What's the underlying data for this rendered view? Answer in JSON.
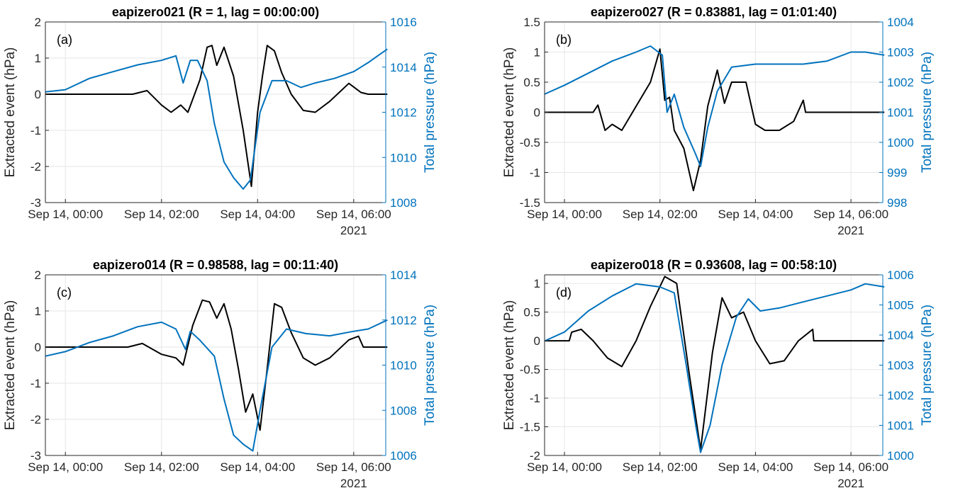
{
  "figure": {
    "colors": {
      "left_axis": "#262626",
      "right_axis": "#0072BD",
      "extracted_line": "#000000",
      "pressure_line": "#0072BD",
      "grid": "#e6e6e6"
    },
    "x_tick_labels": [
      "Sep 14, 00:00",
      "Sep 14, 02:00",
      "Sep 14, 04:00",
      "Sep 14, 06:00"
    ],
    "x_year_label": "2021",
    "ylabel_left": "Extracted event (hPa)",
    "ylabel_right": "Total pressure (hPa)"
  },
  "chart_data": [
    {
      "type": "line",
      "title": "eapizero021 (R = 1, lag = 00:00:00)",
      "panel_label": "(a)",
      "xlim": [
        "2021-09-14 -00:25",
        "2021-09-14 06:40"
      ],
      "ylim_left": [
        -3,
        2
      ],
      "left_ticks": [
        "-3",
        "-2",
        "-1",
        "0",
        "1",
        "2"
      ],
      "ylim_right": [
        1008,
        1016
      ],
      "right_ticks": [
        "1008",
        "1010",
        "1012",
        "1014",
        "1016"
      ],
      "series": [
        {
          "axis": "left",
          "color": "#000000",
          "x": [
            -0.42,
            1.4,
            1.7,
            2.0,
            2.2,
            2.4,
            2.55,
            2.8,
            2.95,
            3.05,
            3.15,
            3.3,
            3.5,
            3.7,
            3.87,
            4.0,
            4.1,
            4.2,
            4.35,
            4.5,
            4.7,
            4.95,
            5.2,
            5.5,
            5.9,
            6.15,
            6.3,
            6.7
          ],
          "y": [
            0.0,
            0.0,
            0.1,
            -0.3,
            -0.5,
            -0.3,
            -0.5,
            0.4,
            1.3,
            1.35,
            0.8,
            1.3,
            0.5,
            -1.0,
            -2.55,
            -0.5,
            0.5,
            1.35,
            1.2,
            0.6,
            0.0,
            -0.45,
            -0.5,
            -0.2,
            0.3,
            0.05,
            0.0,
            0.0
          ]
        },
        {
          "axis": "right",
          "color": "#0072BD",
          "x": [
            -0.42,
            0.0,
            0.5,
            1.0,
            1.5,
            2.0,
            2.3,
            2.45,
            2.6,
            2.75,
            2.95,
            3.1,
            3.3,
            3.5,
            3.7,
            3.85,
            4.05,
            4.3,
            4.6,
            4.9,
            5.2,
            5.6,
            6.0,
            6.3,
            6.5,
            6.7
          ],
          "y": [
            1012.9,
            1013.0,
            1013.5,
            1013.8,
            1014.1,
            1014.3,
            1014.5,
            1013.3,
            1014.3,
            1014.3,
            1013.4,
            1011.5,
            1009.8,
            1009.1,
            1008.6,
            1009.0,
            1012.0,
            1013.4,
            1013.4,
            1013.1,
            1013.3,
            1013.5,
            1013.8,
            1014.2,
            1014.5,
            1014.8
          ]
        }
      ]
    },
    {
      "type": "line",
      "title": "eapizero027 (R = 0.83881, lag = 01:01:40)",
      "panel_label": "(b)",
      "xlim": [
        "2021-09-14 -00:25",
        "2021-09-14 06:40"
      ],
      "ylim_left": [
        -1.5,
        1.5
      ],
      "left_ticks": [
        "-1.5",
        "-1",
        "-0.5",
        "0",
        "0.5",
        "1",
        "1.5"
      ],
      "ylim_right": [
        998,
        1004
      ],
      "right_ticks": [
        "998",
        "999",
        "1000",
        "1001",
        "1002",
        "1003",
        "1004"
      ],
      "series": [
        {
          "axis": "left",
          "color": "#000000",
          "x": [
            -0.42,
            0.6,
            0.7,
            0.85,
            1.0,
            1.2,
            1.5,
            1.8,
            2.0,
            2.1,
            2.2,
            2.3,
            2.5,
            2.7,
            2.85,
            3.0,
            3.2,
            3.35,
            3.5,
            3.8,
            4.0,
            4.2,
            4.5,
            4.8,
            5.0,
            5.05,
            5.2,
            6.7
          ],
          "y": [
            0.0,
            0.0,
            0.12,
            -0.3,
            -0.2,
            -0.3,
            0.1,
            0.5,
            1.05,
            0.2,
            0.25,
            -0.3,
            -0.6,
            -1.3,
            -0.8,
            0.1,
            0.7,
            0.15,
            0.5,
            0.5,
            -0.2,
            -0.3,
            -0.3,
            -0.15,
            0.2,
            0.0,
            0.0,
            0.0
          ]
        },
        {
          "axis": "right",
          "color": "#0072BD",
          "x": [
            -0.42,
            0.0,
            0.5,
            1.0,
            1.5,
            1.8,
            2.05,
            2.15,
            2.3,
            2.5,
            2.75,
            2.85,
            3.0,
            3.2,
            3.5,
            4.0,
            4.5,
            5.0,
            5.5,
            6.0,
            6.3,
            6.7
          ],
          "y": [
            1001.6,
            1001.9,
            1002.3,
            1002.7,
            1003.0,
            1003.2,
            1002.9,
            1001.0,
            1001.6,
            1000.5,
            999.6,
            999.2,
            1000.5,
            1001.7,
            1002.5,
            1002.6,
            1002.6,
            1002.6,
            1002.7,
            1003.0,
            1003.0,
            1002.9
          ]
        }
      ]
    },
    {
      "type": "line",
      "title": "eapizero014 (R = 0.98588, lag = 00:11:40)",
      "panel_label": "(c)",
      "xlim": [
        "2021-09-14 -00:25",
        "2021-09-14 06:40"
      ],
      "ylim_left": [
        -3,
        2
      ],
      "left_ticks": [
        "-3",
        "-2",
        "-1",
        "0",
        "1",
        "2"
      ],
      "ylim_right": [
        1006,
        1014
      ],
      "right_ticks": [
        "1006",
        "1008",
        "1010",
        "1012",
        "1014"
      ],
      "series": [
        {
          "axis": "left",
          "color": "#000000",
          "x": [
            -0.42,
            1.3,
            1.6,
            2.0,
            2.3,
            2.45,
            2.65,
            2.85,
            3.0,
            3.15,
            3.3,
            3.45,
            3.6,
            3.75,
            3.9,
            4.05,
            4.2,
            4.35,
            4.5,
            4.7,
            4.95,
            5.2,
            5.5,
            5.9,
            6.1,
            6.2,
            6.7
          ],
          "y": [
            0.0,
            0.0,
            0.1,
            -0.2,
            -0.3,
            -0.5,
            0.6,
            1.3,
            1.25,
            0.8,
            1.2,
            0.5,
            -0.6,
            -1.8,
            -1.3,
            -2.3,
            -0.6,
            1.2,
            1.1,
            0.4,
            -0.3,
            -0.5,
            -0.3,
            0.2,
            0.3,
            0.0,
            0.0
          ]
        },
        {
          "axis": "right",
          "color": "#0072BD",
          "x": [
            -0.42,
            0.0,
            0.5,
            1.0,
            1.5,
            2.0,
            2.3,
            2.5,
            2.6,
            2.8,
            3.1,
            3.3,
            3.5,
            3.7,
            3.9,
            4.05,
            4.3,
            4.6,
            5.0,
            5.5,
            6.0,
            6.3,
            6.7
          ],
          "y": [
            1010.4,
            1010.6,
            1011.0,
            1011.3,
            1011.7,
            1011.9,
            1011.6,
            1010.7,
            1011.5,
            1011.1,
            1010.4,
            1008.5,
            1006.9,
            1006.5,
            1006.2,
            1008.0,
            1010.8,
            1011.6,
            1011.4,
            1011.3,
            1011.5,
            1011.6,
            1012.0
          ]
        }
      ]
    },
    {
      "type": "line",
      "title": "eapizero018 (R = 0.93608, lag = 00:58:10)",
      "panel_label": "(d)",
      "xlim": [
        "2021-09-14 -00:25",
        "2021-09-14 06:40"
      ],
      "ylim_left": [
        -2,
        1.15
      ],
      "left_ticks": [
        "-2",
        "-1.5",
        "-1",
        "-0.5",
        "0",
        "0.5",
        "1"
      ],
      "ylim_right": [
        1000,
        1006
      ],
      "right_ticks": [
        "1000",
        "1001",
        "1002",
        "1003",
        "1004",
        "1005",
        "1006"
      ],
      "series": [
        {
          "axis": "left",
          "color": "#000000",
          "x": [
            -0.42,
            0.1,
            0.15,
            0.35,
            0.6,
            0.9,
            1.2,
            1.5,
            1.8,
            2.1,
            2.35,
            2.6,
            2.85,
            3.1,
            3.3,
            3.5,
            3.75,
            4.0,
            4.3,
            4.6,
            4.9,
            5.2,
            5.22,
            6.7
          ],
          "y": [
            0.0,
            0.0,
            0.15,
            0.2,
            0.0,
            -0.3,
            -0.45,
            0.0,
            0.6,
            1.12,
            1.0,
            -0.5,
            -1.9,
            -0.2,
            0.75,
            0.4,
            0.5,
            0.0,
            -0.4,
            -0.35,
            0.0,
            0.2,
            0.0,
            0.0
          ]
        },
        {
          "axis": "right",
          "color": "#0072BD",
          "x": [
            -0.42,
            0.0,
            0.5,
            1.0,
            1.5,
            2.0,
            2.3,
            2.55,
            2.75,
            2.85,
            3.05,
            3.3,
            3.6,
            3.85,
            4.1,
            4.5,
            5.0,
            5.5,
            6.0,
            6.3,
            6.7
          ],
          "y": [
            1003.8,
            1004.1,
            1004.8,
            1005.3,
            1005.7,
            1005.6,
            1005.4,
            1003.0,
            1001.0,
            1000.1,
            1001.0,
            1003.0,
            1004.6,
            1005.2,
            1004.8,
            1004.9,
            1005.1,
            1005.3,
            1005.5,
            1005.7,
            1005.6
          ]
        }
      ]
    }
  ]
}
